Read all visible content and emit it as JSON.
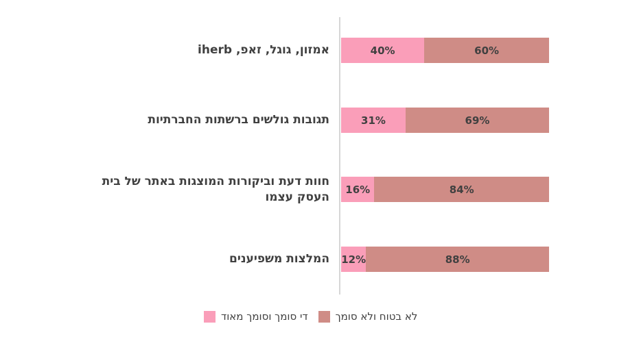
{
  "chart_data": {
    "type": "bar",
    "orientation": "horizontal_stacked",
    "title": "",
    "xlabel": "",
    "ylabel": "",
    "xlim": [
      0,
      100
    ],
    "grid": false,
    "legend_position": "bottom",
    "axis_color": "#D6D6D6",
    "text_color": "#404040",
    "categories": [
      "אמזון, גוגל, זאפ, iherb",
      "תגובות גולשים ברשתות החברתיות",
      "חוות דעת וביקורות המוצגות באתר של בית העסק עצמו",
      "המלצות משפיענים"
    ],
    "series": [
      {
        "name": "די סומך וסומך מאוד",
        "color": "#FA9EB9",
        "values": [
          40,
          31,
          16,
          12
        ]
      },
      {
        "name": "לא בטוח ולא סומך",
        "color": "#CF8C86",
        "values": [
          60,
          69,
          84,
          88
        ]
      }
    ],
    "value_labels": [
      [
        "40%",
        "60%"
      ],
      [
        "31%",
        "69%"
      ],
      [
        "16%",
        "84%"
      ],
      [
        "12%",
        "88%"
      ]
    ]
  },
  "legend": {
    "items": [
      {
        "label": "די סומך וסומך מאוד",
        "color": "#FA9EB9"
      },
      {
        "label": "לא בטוח ולא סומך",
        "color": "#CF8C86"
      }
    ]
  }
}
